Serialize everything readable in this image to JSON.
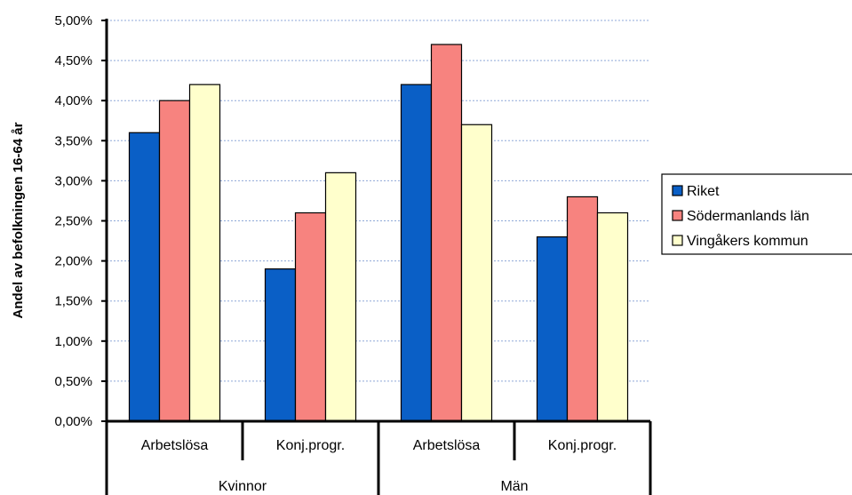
{
  "chart_data": {
    "type": "bar",
    "ylabel": "Andel av befolkningen 16-64 år",
    "ylim": [
      0,
      0.05
    ],
    "yticks": [
      "0,00%",
      "0,50%",
      "1,00%",
      "1,50%",
      "2,00%",
      "2,50%",
      "3,00%",
      "3,50%",
      "4,00%",
      "4,50%",
      "5,00%"
    ],
    "grid": true,
    "legend_position": "right",
    "groups": [
      "Kvinnor",
      "Män"
    ],
    "categories": [
      "Arbetslösa",
      "Konj.progr.",
      "Arbetslösa",
      "Konj.progr."
    ],
    "series": [
      {
        "name": "Riket",
        "color": "#0a5fc6",
        "values": [
          0.036,
          0.019,
          0.042,
          0.023
        ]
      },
      {
        "name": "Södermanlands län",
        "color": "#f7837f",
        "values": [
          0.04,
          0.026,
          0.047,
          0.028
        ]
      },
      {
        "name": "Vingåkers kommun",
        "color": "#ffffcc",
        "values": [
          0.042,
          0.031,
          0.037,
          0.026
        ]
      }
    ]
  }
}
